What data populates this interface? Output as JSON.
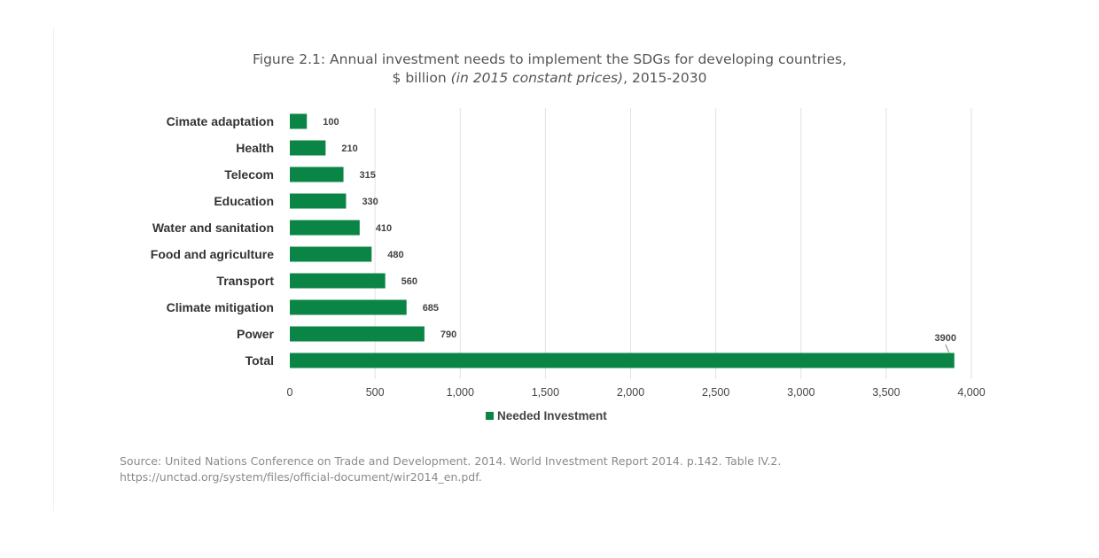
{
  "chart_data": {
    "type": "bar",
    "orientation": "horizontal",
    "title_line1": "Figure 2.1: Annual investment needs to implement the SDGs for developing countries,",
    "title_line2_prefix": "$ billion ",
    "title_line2_italic": "(in 2015 constant prices)",
    "title_line2_suffix": ", 2015-2030",
    "categories": [
      "Cimate adaptation",
      "Health",
      "Telecom",
      "Education",
      "Water and sanitation",
      "Food and agriculture",
      "Transport",
      "Climate mitigation",
      "Power",
      "Total"
    ],
    "series": [
      {
        "name": "Needed Investment",
        "color": "#0a8545",
        "values": [
          100,
          210,
          315,
          330,
          410,
          480,
          560,
          685,
          790,
          3900
        ]
      }
    ],
    "data_labels": [
      "100",
      "210",
      "315",
      "330",
      "410",
      "480",
      "560",
      "685",
      "790",
      "3900"
    ],
    "xlim": [
      0,
      4000
    ],
    "xticks": [
      0,
      500,
      1000,
      1500,
      2000,
      2500,
      3000,
      3500,
      4000
    ],
    "xtick_labels": [
      "0",
      "500",
      "1,000",
      "1,500",
      "2,000",
      "2,500",
      "3,000",
      "3,500",
      "4,000"
    ],
    "xlabel": "",
    "ylabel": "",
    "grid": "vertical",
    "legend": {
      "position": "bottom",
      "entries": [
        "Needed Investment"
      ]
    }
  },
  "source": {
    "line1": "Source: United Nations Conference on Trade and Development. 2014. World Investment Report 2014. p.142. Table IV.2.",
    "line2": "https://unctad.org/system/files/official-document/wir2014_en.pdf."
  }
}
